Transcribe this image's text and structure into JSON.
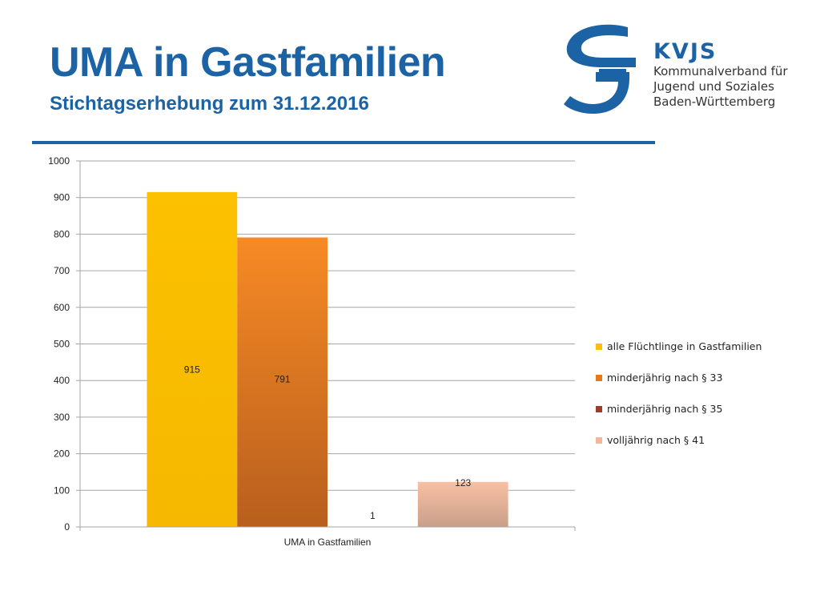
{
  "header": {
    "title": "UMA in Gastfamilien",
    "subtitle": "Stichtagserhebung zum 31.12.2016"
  },
  "logo": {
    "icon": "kvjs-s-logo-icon",
    "brand": "KVJS",
    "line1": "Kommunalverband für",
    "line2": "Jugend und Soziales",
    "line3": "Baden-Württemberg",
    "color": "#1b63a5"
  },
  "chart_data": {
    "type": "bar",
    "categories": [
      "UMA in Gastfamilien"
    ],
    "series": [
      {
        "name": "alle Flüchtlinge in Gastfamilien",
        "values": [
          915
        ],
        "color": "#fcc100",
        "colorBottom": "#f6b800",
        "legendColor": "#fcc100"
      },
      {
        "name": "minderjährig nach § 33",
        "values": [
          791
        ],
        "color": "#f78a25",
        "colorBottom": "#b85f1e",
        "legendColor": "#e8781c"
      },
      {
        "name": "minderjährig nach § 35",
        "values": [
          1
        ],
        "color": "#a8432c",
        "colorBottom": "#8a3324",
        "legendColor": "#9e3d2b"
      },
      {
        "name": "volljährig nach § 41",
        "values": [
          123
        ],
        "color": "#f8c0a3",
        "colorBottom": "#c99f8a",
        "legendColor": "#f2b89c"
      }
    ],
    "data_labels": [
      "915",
      "791",
      "1",
      "123"
    ],
    "ylim": [
      0,
      1000
    ],
    "yticks": [
      "0",
      "100",
      "200",
      "300",
      "400",
      "500",
      "600",
      "700",
      "800",
      "900",
      "1000"
    ],
    "grid": true,
    "legend_position": "right"
  }
}
